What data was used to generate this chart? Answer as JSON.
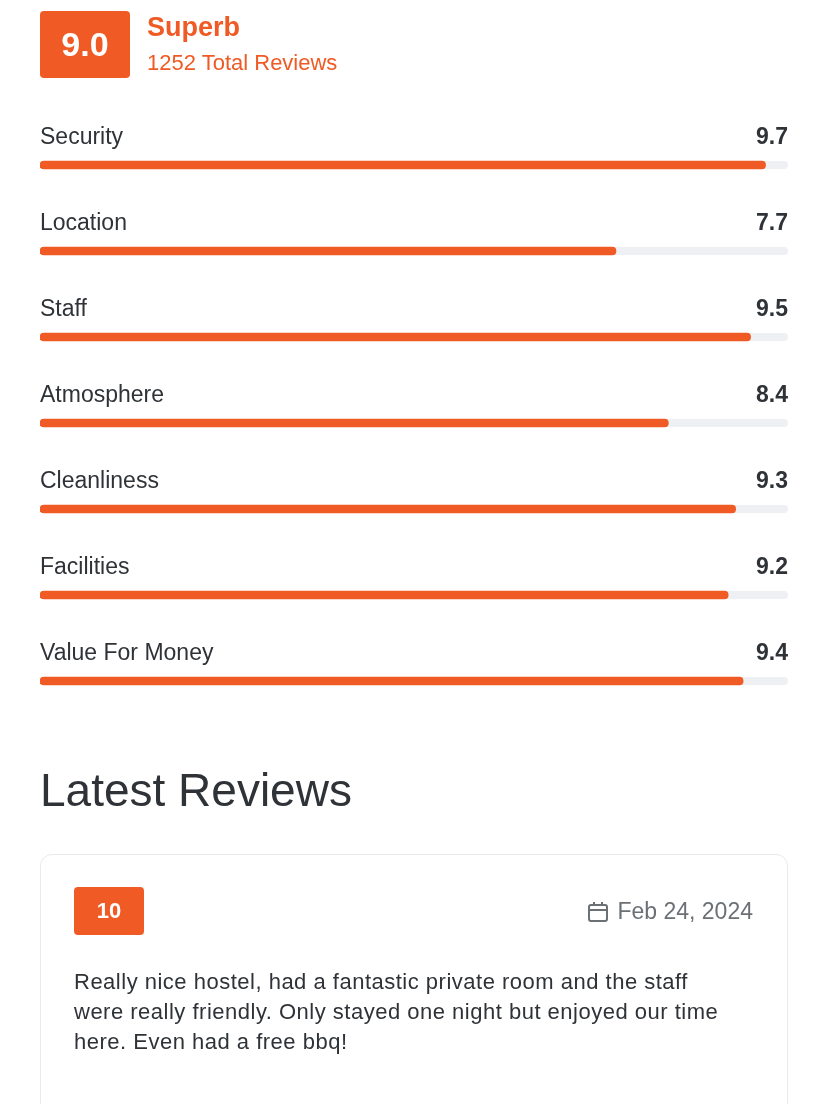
{
  "chart_data": {
    "type": "bar",
    "orientation": "horizontal",
    "title": "Superb",
    "subtitle": "1252 Total Reviews",
    "categories": [
      "Security",
      "Location",
      "Staff",
      "Atmosphere",
      "Cleanliness",
      "Facilities",
      "Value For Money"
    ],
    "values": [
      9.7,
      7.7,
      9.5,
      8.4,
      9.3,
      9.2,
      9.4
    ],
    "color": "#f05a24",
    "xlim": [
      0,
      10
    ],
    "tick_labels": false,
    "data_labels": true,
    "annotations": [
      "9.0",
      "Latest Reviews",
      "10",
      "Feb 24, 2024",
      "Really nice hostel, had a fantastic private room and the staff were really friendly. Only stayed one night but enjoyed our time here. Even had a free bbq!"
    ]
  }
}
